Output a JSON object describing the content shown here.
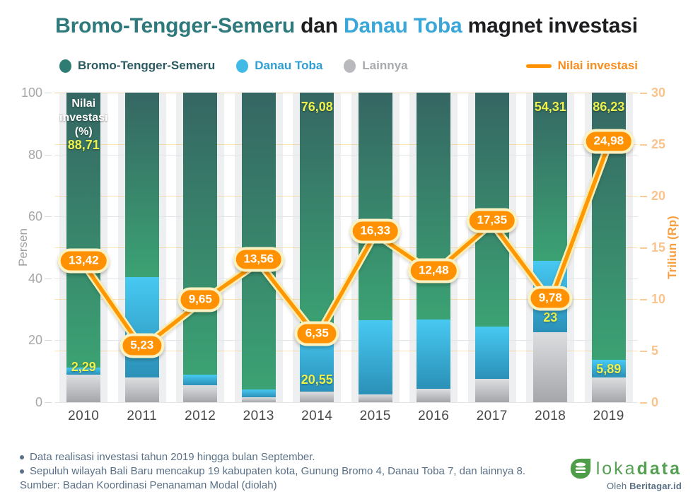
{
  "title": {
    "parts": [
      {
        "text": "Bromo-Tengger-Semeru",
        "color": "#2E797C"
      },
      {
        "text": " dan ",
        "color": "#1E1E20"
      },
      {
        "text": "Danau Toba",
        "color": "#3AA7D8"
      },
      {
        "text": " magnet investasi",
        "color": "#1E1E20"
      }
    ]
  },
  "legend": [
    {
      "label": "Bromo-Tengger-Semeru",
      "type": "dot",
      "color": "#2F7D72",
      "text_color": "#2C5A62"
    },
    {
      "label": "Danau Toba",
      "type": "dot",
      "color": "#41BBE6",
      "text_color": "#2E9FD6"
    },
    {
      "label": "Lainnya",
      "type": "dot",
      "color": "#B9BABD",
      "text_color": "#A8AAAD"
    },
    {
      "label": "Nilai investasi",
      "type": "line",
      "color": "#FF9102",
      "text_color": "#F78D1E"
    }
  ],
  "chart_data": {
    "type": "bar",
    "subtype": "100-percent-stacked-with-line-overlay",
    "title": "Bromo-Tengger-Semeru dan Danau Toba magnet investasi",
    "categories": [
      "2010",
      "2011",
      "2012",
      "2013",
      "2014",
      "2015",
      "2016",
      "2017",
      "2018",
      "2019"
    ],
    "series": [
      {
        "name": "Bromo-Tengger-Semeru",
        "values": [
          88.71,
          59.5,
          91.1,
          96.0,
          76.08,
          73.6,
          73.4,
          75.6,
          54.31,
          86.23
        ]
      },
      {
        "name": "Danau Toba",
        "values": [
          2.29,
          32.5,
          3.4,
          2.3,
          20.55,
          23.8,
          22.3,
          16.9,
          23.0,
          5.89
        ]
      },
      {
        "name": "Lainnya",
        "values": [
          9.0,
          8.0,
          5.5,
          1.7,
          3.37,
          2.6,
          4.3,
          7.5,
          22.69,
          7.88
        ]
      }
    ],
    "line": {
      "name": "Nilai investasi",
      "values": [
        13.42,
        5.23,
        9.65,
        13.56,
        6.35,
        16.33,
        12.48,
        17.35,
        9.78,
        24.98
      ],
      "labels": [
        "13,42",
        "5,23",
        "9,65",
        "13,56",
        "6,35",
        "16,33",
        "12,48",
        "17,35",
        "9,78",
        "24,98"
      ]
    },
    "ylabel_left": "Persen",
    "ylabel_right": "Triliun (Rp)",
    "ylim_left": [
      0,
      100
    ],
    "ylim_right": [
      0,
      30
    ],
    "left_ticks": [
      0,
      20,
      40,
      60,
      80,
      100
    ],
    "right_ticks": [
      0,
      5,
      10,
      15,
      20,
      25,
      30
    ],
    "grid": "on",
    "legend_position": "top",
    "bar_annotations": [
      {
        "col": 0,
        "kind": "header",
        "lines": [
          "Nilai",
          "investasi",
          "(%)"
        ]
      },
      {
        "col": 0,
        "kind": "green-top",
        "text": "88,71",
        "below_header": true
      },
      {
        "col": 0,
        "kind": "toba",
        "text": "2,29"
      },
      {
        "col": 4,
        "kind": "green-top",
        "text": "76,08"
      },
      {
        "col": 4,
        "kind": "toba",
        "text": "20,55"
      },
      {
        "col": 8,
        "kind": "green-top",
        "text": "54,31"
      },
      {
        "col": 8,
        "kind": "toba",
        "text": "23"
      },
      {
        "col": 9,
        "kind": "green-top",
        "text": "86,23"
      },
      {
        "col": 9,
        "kind": "toba",
        "text": "5,89"
      }
    ],
    "colors": {
      "bromo_gradient": [
        "#356663",
        "#3BA273"
      ],
      "toba_gradient": [
        "#47C9F2",
        "#2B90B7"
      ],
      "lainnya_gradient": [
        "#DDDEE0",
        "#A5A6AA"
      ],
      "line": "#FE9702",
      "line_halo": "#FBEDB0",
      "bubble_fill": "#FF9102",
      "bubble_border": "#FAF2C2",
      "value_label": "#EDF24D",
      "right_axis": "#F9C38D"
    }
  },
  "footer": {
    "note1": "Data realisasi investasi tahun 2019 hingga bulan September.",
    "note2": "Sepuluh wilayah Bali Baru mencakup 19 kabupaten kota, Gunung Bromo 4, Danau Toba 7, dan lainnya 8.",
    "source": "Sumber: Badan Koordinasi Penanaman Modal (diolah)"
  },
  "logo": {
    "brand_light": "loka",
    "brand_bold": "data",
    "byline_prefix": "Oleh ",
    "byline_bold": "Beritagar.id"
  }
}
